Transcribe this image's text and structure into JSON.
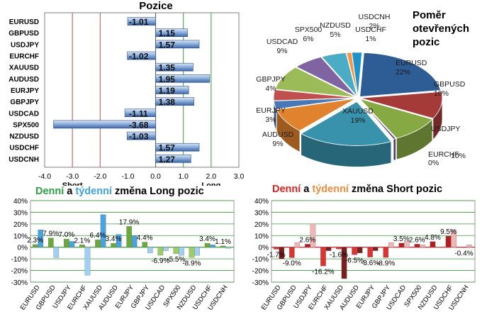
{
  "positions": {
    "title": "Pozice",
    "pairs": [
      "EURUSD",
      "GBPUSD",
      "USDJPY",
      "EURCHF",
      "XAUUSD",
      "AUDUSD",
      "EURJPY",
      "GBPJPY",
      "USDCAD",
      "SPX500",
      "NZDUSD",
      "USDCHF",
      "USDCNH"
    ],
    "values": [
      -1.01,
      1.15,
      1.57,
      -1.02,
      1.35,
      1.95,
      1.19,
      1.38,
      -1.11,
      -3.68,
      -1.03,
      1.57,
      1.27
    ],
    "value_labels": [
      "-1.01",
      "1.15",
      "1.57",
      "-1.02",
      "1.35",
      "1.95",
      "1.19",
      "1.38",
      "-1.11",
      "-3.68",
      "-1.03",
      "1.57",
      "1.27"
    ],
    "ticks": [
      "-4.0",
      "-3.0",
      "-2.0",
      "-1.0",
      "0.0",
      "1.0",
      "2.0",
      "3.0"
    ],
    "short_label": "Short",
    "long_label": "Long"
  },
  "pie": {
    "title_lines": [
      "Poměr",
      "otevřených",
      "pozic"
    ],
    "slices": [
      {
        "label": "EURUSD",
        "pct": "22%",
        "value": 22,
        "color": "#2e5d95"
      },
      {
        "label": "GBPUSD",
        "pct": "10%",
        "value": 10,
        "color": "#a53b38"
      },
      {
        "label": "USDJPY",
        "pct": "10%",
        "value": 10,
        "color": "#86a944"
      },
      {
        "label": "EURCHF",
        "pct": "0%",
        "value": 0.5,
        "color": "#6d5393"
      },
      {
        "label": "XAUUSD",
        "pct": "19%",
        "value": 19,
        "color": "#3892ab"
      },
      {
        "label": "AUDUSD",
        "pct": "9%",
        "value": 9,
        "color": "#e0822e"
      },
      {
        "label": "EURJPY",
        "pct": "3%",
        "value": 3,
        "color": "#4a78b5"
      },
      {
        "label": "GBPJPY",
        "pct": "4%",
        "value": 4,
        "color": "#c0504d"
      },
      {
        "label": "USDCAD",
        "pct": "9%",
        "value": 9,
        "color": "#9bbb59"
      },
      {
        "label": "SPX500",
        "pct": "6%",
        "value": 6,
        "color": "#8064a2"
      },
      {
        "label": "NZDUSD",
        "pct": "5%",
        "value": 5,
        "color": "#4bacc6"
      },
      {
        "label": "USDCHF",
        "pct": "1%",
        "value": 1,
        "color": "#f79646"
      },
      {
        "label": "USDCNH",
        "pct": "2%",
        "value": 2,
        "color": "#1f93c8"
      }
    ]
  },
  "long_change": {
    "title_parts": [
      "Denní",
      " a ",
      "týdenní",
      " změna Long pozic"
    ],
    "title_colors": [
      "#2ea043",
      "#000000",
      "#3ca0e6",
      "#000000"
    ],
    "categories": [
      "EURUSD",
      "GBPUSD",
      "USDJPY",
      "EURCHF",
      "XAUUSD",
      "AUDUSD",
      "EURJPY",
      "GBPJPY",
      "USDCAD",
      "SPX500",
      "NZDUSD",
      "USDCHF",
      "USDCNH"
    ],
    "daily": [
      2.3,
      7.9,
      7.0,
      2.1,
      6.4,
      3.4,
      17.9,
      4.4,
      -6.9,
      -5.5,
      -8.9,
      3.4,
      1.1
    ],
    "weekly": [
      15.0,
      -9.0,
      5.0,
      -24.0,
      28.0,
      11.0,
      10.0,
      -5.0,
      -3.0,
      -7.0,
      -7.0,
      2.0,
      -1.0
    ],
    "labels": [
      "2.3%",
      "7.9%",
      "7.0%",
      "2.1%",
      "6.4%",
      "3.4%",
      "17.9%",
      "4.4%",
      "-6.9%",
      "-5.5%",
      "-8.9%",
      "3.4%",
      "1.1%"
    ],
    "yticks": [
      "40%",
      "30%",
      "20%",
      "10%",
      "0%",
      "-10%",
      "-20%",
      "-30%"
    ],
    "ylim": [
      -30,
      40
    ]
  },
  "short_change": {
    "title_parts": [
      "Denní",
      " a ",
      "týdenní",
      " změna Short pozic"
    ],
    "title_colors": [
      "#e02020",
      "#000000",
      "#f08c3c",
      "#000000"
    ],
    "categories": [
      "EURUSD",
      "GBPUSD",
      "USDJPY",
      "EURCHF",
      "XAUUSD",
      "AUDUSD",
      "EURJPY",
      "GBPJPY",
      "USDCAD",
      "SPX500",
      "NZDUSD",
      "USDCHF",
      "USDCNH"
    ],
    "daily": [
      -1.7,
      -9.0,
      2.6,
      -16.2,
      -1.6,
      -6.5,
      -8.6,
      -8.9,
      3.5,
      2.6,
      4.8,
      9.5,
      -0.4
    ],
    "weekly": [
      -10.0,
      4.0,
      20.0,
      -3.0,
      -27.0,
      -5.0,
      -3.0,
      4.0,
      5.0,
      2.0,
      0.0,
      15.0,
      2.0
    ],
    "labels": [
      "-1.7%",
      "-9.0%",
      "2.6%",
      "-16.2%",
      "-1.6%",
      "-6.5%",
      "-8.6%",
      "-8.9%",
      "3.5%",
      "2.6%",
      "4.8%",
      "9.5%",
      "-0.4%"
    ],
    "yticks": [
      "40%",
      "30%",
      "20%",
      "10%",
      "0%",
      "-10%",
      "-20%",
      "-30%"
    ],
    "ylim": [
      -30,
      40
    ]
  },
  "chart_data": [
    {
      "type": "bar",
      "title": "Pozice",
      "categories": [
        "EURUSD",
        "GBPUSD",
        "USDJPY",
        "EURCHF",
        "XAUUSD",
        "AUDUSD",
        "EURJPY",
        "GBPJPY",
        "USDCAD",
        "SPX500",
        "NZDUSD",
        "USDCHF",
        "USDCNH"
      ],
      "values": [
        -1.01,
        1.15,
        1.57,
        -1.02,
        1.35,
        1.95,
        1.19,
        1.38,
        -1.11,
        -3.68,
        -1.03,
        1.57,
        1.27
      ],
      "xlim": [
        -4,
        3
      ],
      "orientation": "horizontal"
    },
    {
      "type": "pie",
      "title": "Poměr otevřených pozic",
      "categories": [
        "EURUSD",
        "GBPUSD",
        "USDJPY",
        "EURCHF",
        "XAUUSD",
        "AUDUSD",
        "EURJPY",
        "GBPJPY",
        "USDCAD",
        "SPX500",
        "NZDUSD",
        "USDCHF",
        "USDCNH"
      ],
      "values": [
        22,
        10,
        10,
        0,
        19,
        9,
        3,
        4,
        9,
        6,
        5,
        1,
        2
      ]
    },
    {
      "type": "bar",
      "title": "Denní a týdenní změna Long pozic",
      "categories": [
        "EURUSD",
        "GBPUSD",
        "USDJPY",
        "EURCHF",
        "XAUUSD",
        "AUDUSD",
        "EURJPY",
        "GBPJPY",
        "USDCAD",
        "SPX500",
        "NZDUSD",
        "USDCHF",
        "USDCNH"
      ],
      "series": [
        {
          "name": "Denní",
          "values": [
            2.3,
            7.9,
            7.0,
            2.1,
            6.4,
            3.4,
            17.9,
            4.4,
            -6.9,
            -5.5,
            -8.9,
            3.4,
            1.1
          ]
        },
        {
          "name": "týdenní",
          "values": [
            15,
            -9,
            5,
            -24,
            28,
            11,
            10,
            -5,
            -3,
            -7,
            -7,
            2,
            -1
          ]
        }
      ],
      "ylim": [
        -30,
        40
      ]
    },
    {
      "type": "bar",
      "title": "Denní a týdenní změna Short pozic",
      "categories": [
        "EURUSD",
        "GBPUSD",
        "USDJPY",
        "EURCHF",
        "XAUUSD",
        "AUDUSD",
        "EURJPY",
        "GBPJPY",
        "USDCAD",
        "SPX500",
        "NZDUSD",
        "USDCHF",
        "USDCNH"
      ],
      "series": [
        {
          "name": "Denní",
          "values": [
            -1.7,
            -9.0,
            2.6,
            -16.2,
            -1.6,
            -6.5,
            -8.6,
            -8.9,
            3.5,
            2.6,
            4.8,
            9.5,
            -0.4
          ]
        },
        {
          "name": "týdenní",
          "values": [
            -10,
            4,
            20,
            -3,
            -27,
            -5,
            -3,
            4,
            5,
            2,
            0,
            15,
            2
          ]
        }
      ],
      "ylim": [
        -30,
        40
      ]
    }
  ]
}
